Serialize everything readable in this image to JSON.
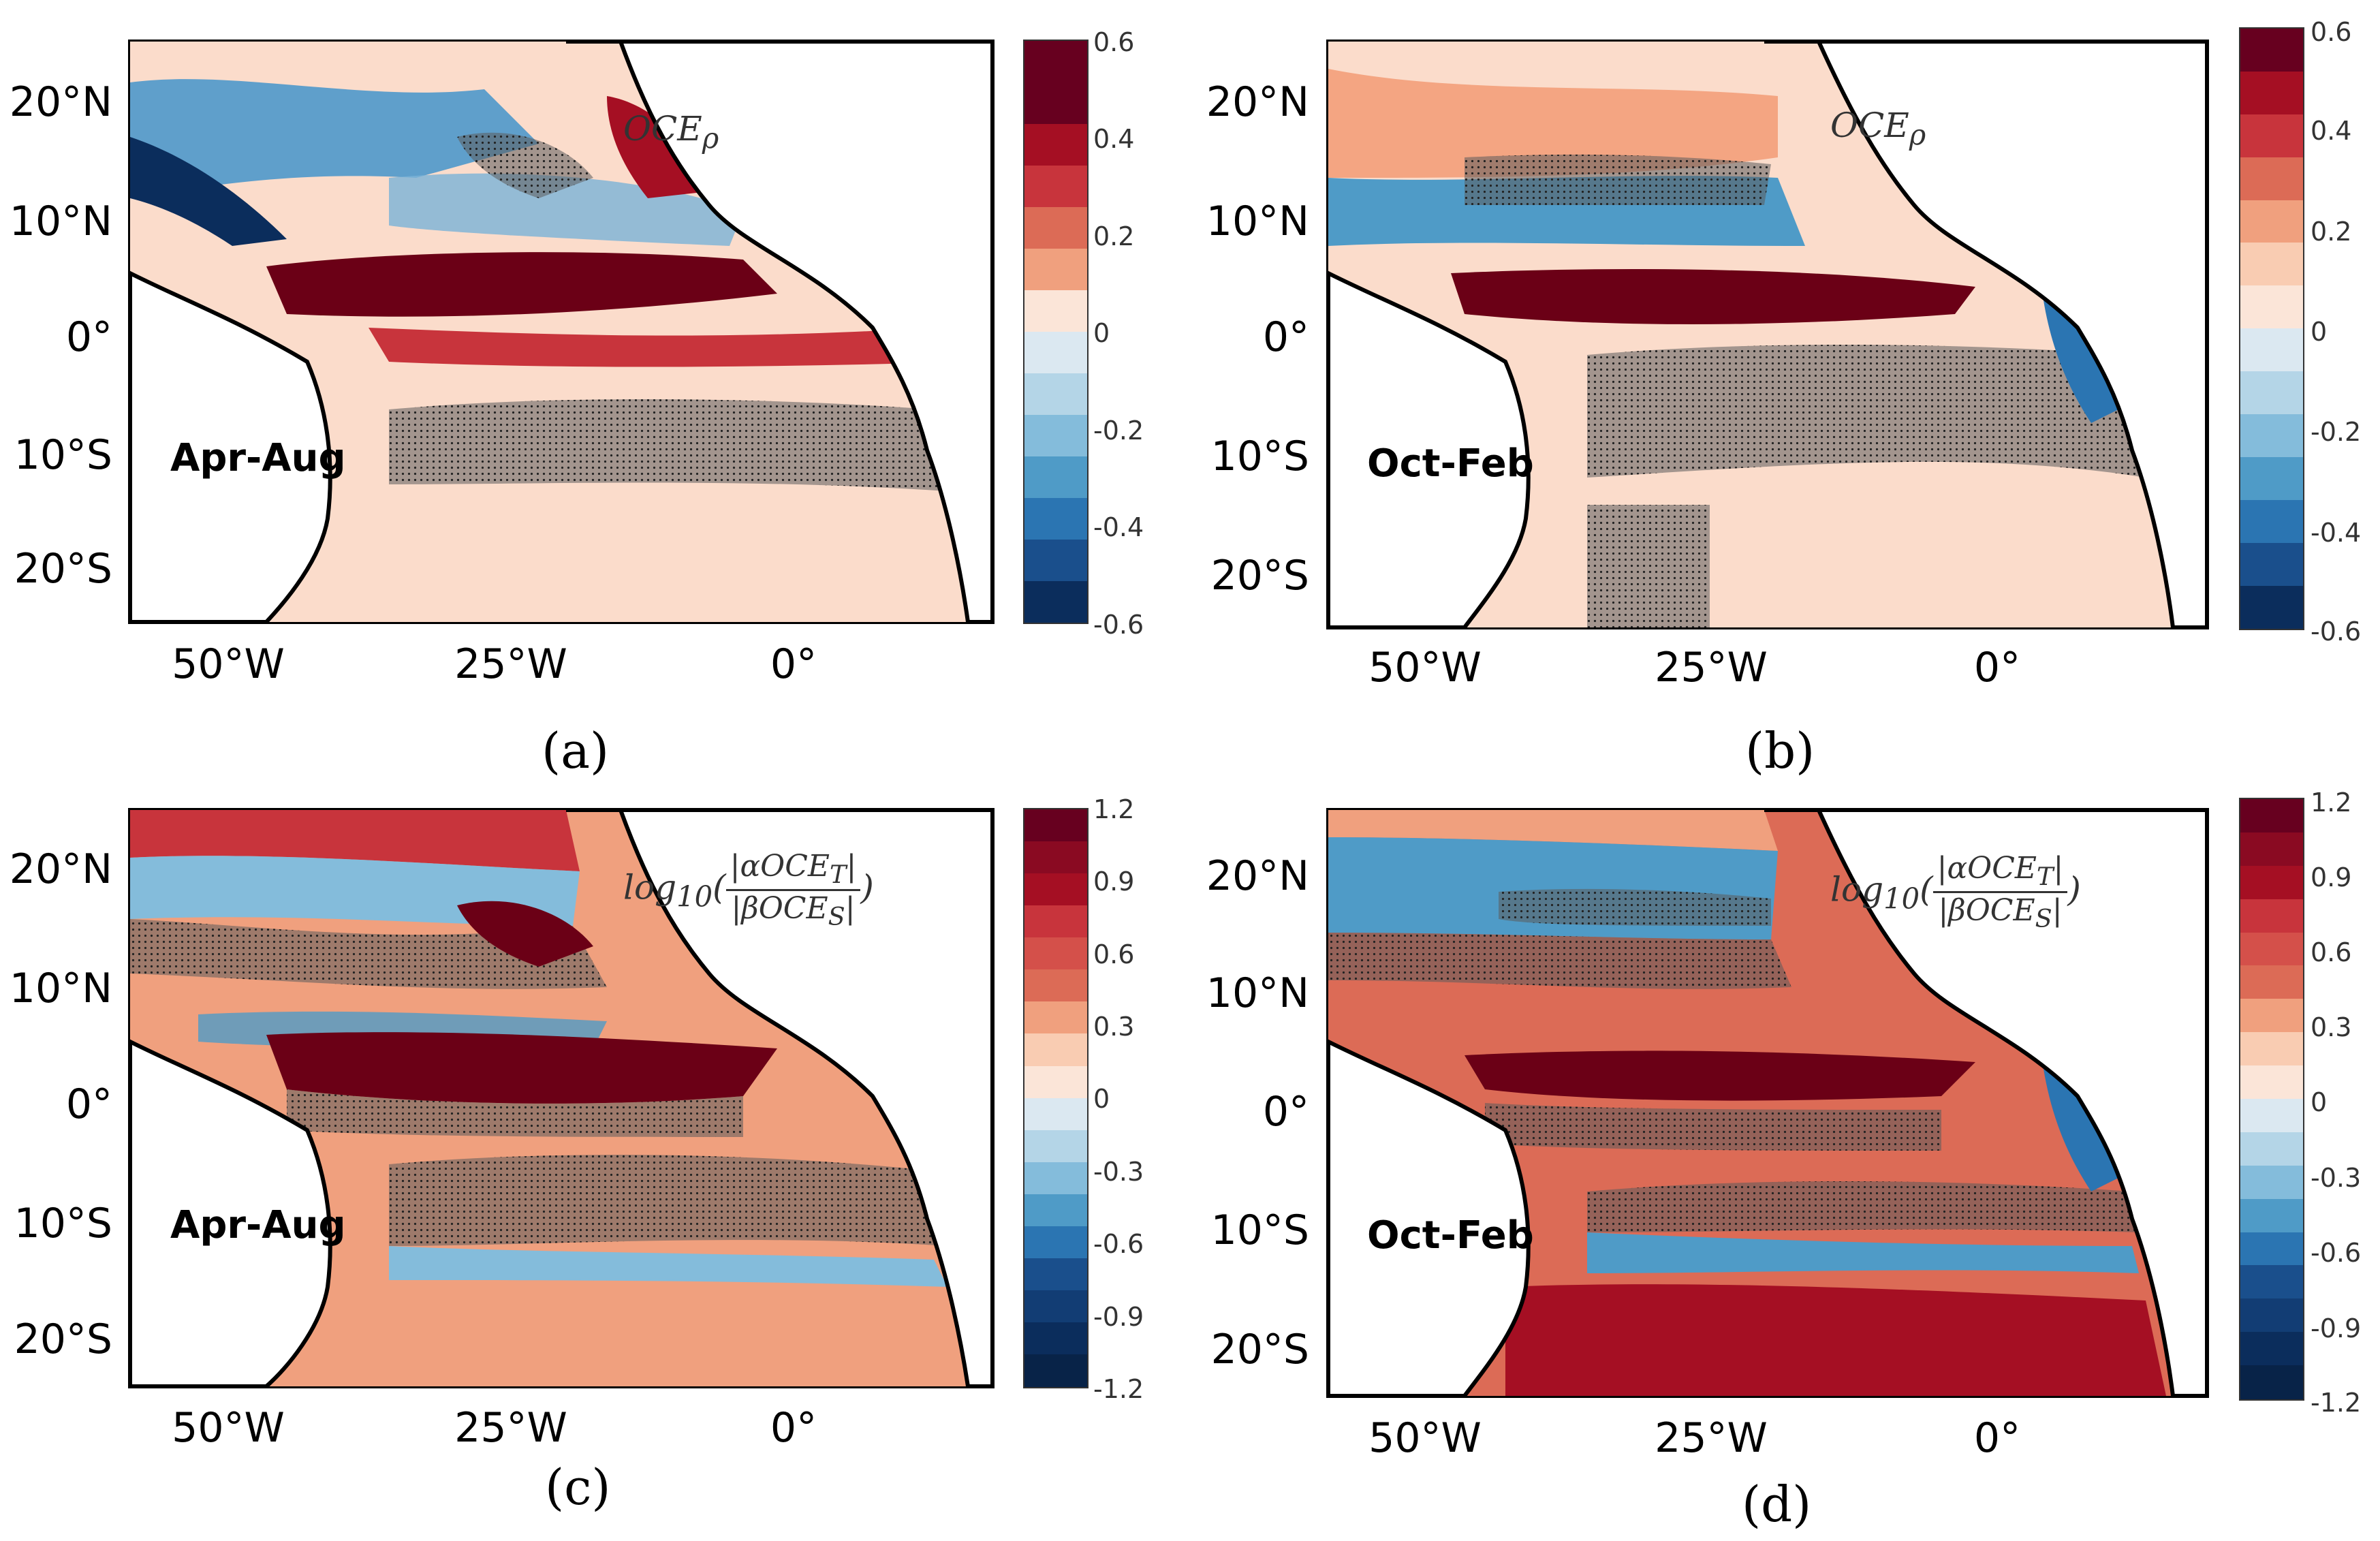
{
  "figure": {
    "colors": {
      "land": "#ffffff",
      "coast": "#000000",
      "dark_red": "#6b0016",
      "red": "#c8343c",
      "light_red": "#f4a582",
      "pale": "#fbe0d0",
      "pale_blue": "#d1e5f0",
      "blue": "#4393c3",
      "dark_blue": "#053061",
      "stipple": "#555555"
    },
    "panels": [
      {
        "id": "a",
        "label": "(a)",
        "season": "Apr-Aug",
        "formula_type": "oce_rho",
        "formula_main": "OCE",
        "formula_sub": "ρ",
        "y_ticks": [
          "20°N",
          "10°N",
          "0°",
          "10°S",
          "20°S"
        ],
        "x_ticks": [
          "50°W",
          "25°W",
          "0°"
        ],
        "colorbar_ticks": [
          "0.6",
          "0.4",
          "0.2",
          "0",
          "-0.2",
          "-0.4",
          "-0.6"
        ]
      },
      {
        "id": "b",
        "label": "(b)",
        "season": "Oct-Feb",
        "formula_type": "oce_rho",
        "formula_main": "OCE",
        "formula_sub": "ρ",
        "y_ticks": [
          "20°N",
          "10°N",
          "0°",
          "10°S",
          "20°S"
        ],
        "x_ticks": [
          "50°W",
          "25°W",
          "0°"
        ],
        "colorbar_ticks": [
          "0.6",
          "0.4",
          "0.2",
          "0",
          "-0.2",
          "-0.4",
          "-0.6"
        ]
      },
      {
        "id": "c",
        "label": "(c)",
        "season": "Apr-Aug",
        "formula_type": "log_ratio",
        "formula_log": "log",
        "formula_log_sub": "10",
        "formula_num": "|αOCE",
        "formula_num_sub": "T",
        "formula_den": "|βOCE",
        "formula_den_sub": "S",
        "y_ticks": [
          "20°N",
          "10°N",
          "0°",
          "10°S",
          "20°S"
        ],
        "x_ticks": [
          "50°W",
          "25°W",
          "0°"
        ],
        "colorbar_ticks": [
          "1.2",
          "0.9",
          "0.6",
          "0.3",
          "0",
          "-0.3",
          "-0.6",
          "-0.9",
          "-1.2"
        ]
      },
      {
        "id": "d",
        "label": "(d)",
        "season": "Oct-Feb",
        "formula_type": "log_ratio",
        "formula_log": "log",
        "formula_log_sub": "10",
        "formula_num": "|αOCE",
        "formula_num_sub": "T",
        "formula_den": "|βOCE",
        "formula_den_sub": "S",
        "y_ticks": [
          "20°N",
          "10°N",
          "0°",
          "10°S",
          "20°S"
        ],
        "x_ticks": [
          "50°W",
          "25°W",
          "0°"
        ],
        "colorbar_ticks": [
          "1.2",
          "0.9",
          "0.6",
          "0.3",
          "0",
          "-0.3",
          "-0.6",
          "-0.9",
          "-1.2"
        ]
      }
    ],
    "colorbar_palette": [
      "#67001f",
      "#a50f23",
      "#c8343c",
      "#dc6b56",
      "#f0a07e",
      "#f9ccb2",
      "#fbe5d8",
      "#dbe8f1",
      "#b4d5e7",
      "#84bcdb",
      "#4f9bc7",
      "#2b75b2",
      "#1a4f8c",
      "#0b2d5c"
    ]
  }
}
